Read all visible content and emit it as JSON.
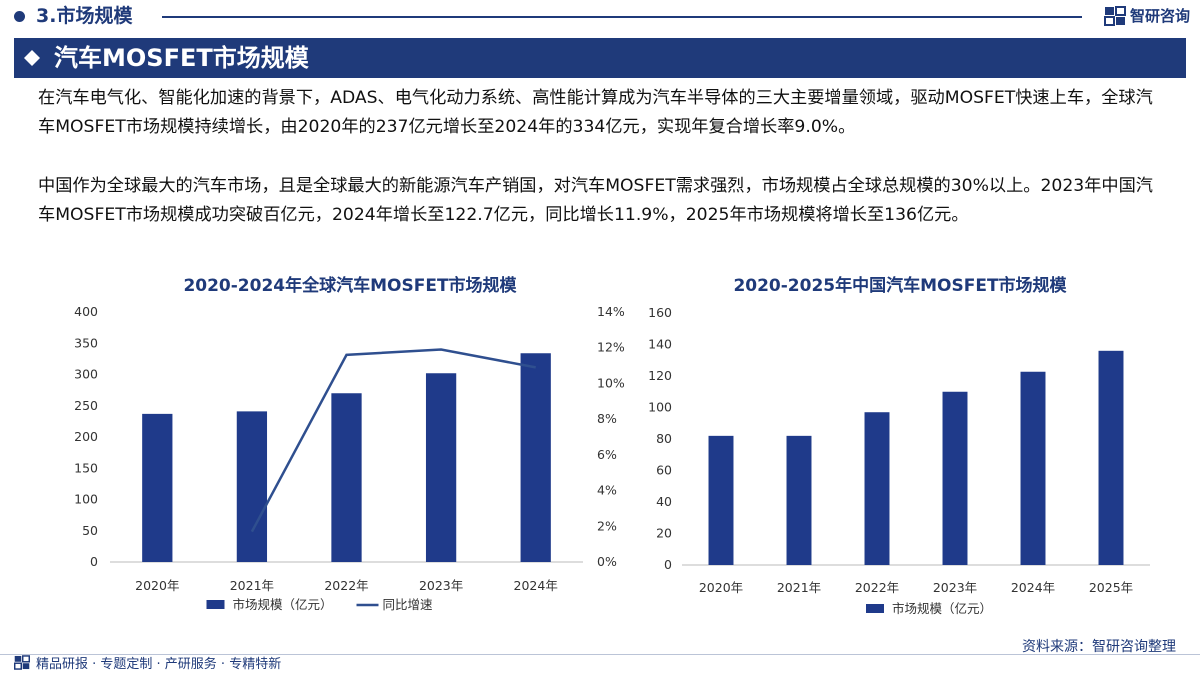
{
  "header": {
    "section": "3.市场规模",
    "brand": "智研咨询",
    "title": "汽车MOSFET市场规模"
  },
  "body": {
    "paragraph1": "在汽车电气化、智能化加速的背景下，ADAS、电气化动力系统、高性能计算成为汽车半导体的三大主要增量领域，驱动MOSFET快速上车，全球汽车MOSFET市场规模持续增长，由2020年的237亿元增长至2024年的334亿元，实现年复合增长率9.0%。",
    "paragraph2": "中国作为全球最大的汽车市场，且是全球最大的新能源汽车产销国，对汽车MOSFET需求强烈，市场规模占全球总规模的30%以上。2023年中国汽车MOSFET市场规模成功突破百亿元，2024年增长至122.7亿元，同比增长11.9%，2025年市场规模将增长至136亿元。"
  },
  "chart_data": [
    {
      "type": "bar",
      "title": "2020-2024年全球汽车MOSFET市场规模",
      "categories": [
        "2020年",
        "2021年",
        "2022年",
        "2023年",
        "2024年"
      ],
      "series": [
        {
          "name": "市场规模（亿元）",
          "type": "bar",
          "values": [
            237,
            241,
            270,
            302,
            334
          ],
          "color": "#1f3a8a"
        },
        {
          "name": "同比增速",
          "type": "line",
          "axis": "right",
          "values": [
            null,
            1.7,
            11.6,
            11.9,
            10.9
          ],
          "color": "#2f4f8f"
        }
      ],
      "ylim": [
        0,
        400
      ],
      "yticks": [
        "0",
        "50",
        "100",
        "150",
        "200",
        "250",
        "300",
        "350",
        "400"
      ],
      "y2lim": [
        0,
        14
      ],
      "y2ticks": [
        "0%",
        "2%",
        "4%",
        "6%",
        "8%",
        "10%",
        "12%",
        "14%"
      ],
      "legend": "bottom"
    },
    {
      "type": "bar",
      "title": "2020-2025年中国汽车MOSFET市场规模",
      "categories": [
        "2020年",
        "2021年",
        "2022年",
        "2023年",
        "2024年",
        "2025年"
      ],
      "series": [
        {
          "name": "市场规模（亿元）",
          "type": "bar",
          "values": [
            82,
            82,
            97,
            110,
            122.7,
            136
          ],
          "color": "#1f3a8a"
        }
      ],
      "ylim": [
        0,
        160
      ],
      "yticks": [
        "0",
        "20",
        "40",
        "60",
        "80",
        "100",
        "120",
        "140",
        "160"
      ],
      "legend": "bottom"
    }
  ],
  "footer": {
    "source": "资料来源：智研咨询整理",
    "tagline": "精品研报 · 专题定制 · 产研服务 · 专精特新"
  }
}
